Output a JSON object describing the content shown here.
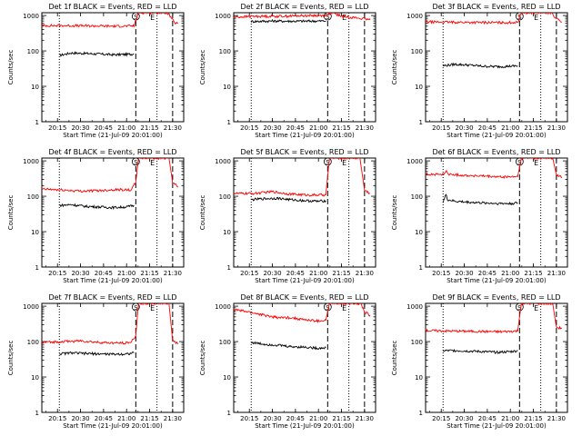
{
  "colors": {
    "events": "#000000",
    "lld": "#ff0000",
    "axes": "#000000"
  },
  "chart_data": [
    {
      "type": "line",
      "title": "Det 1f BLACK = Events, RED = LLD",
      "xlabel": "Start Time (21-Jul-09 20:01:00)",
      "ylabel": "Counts/sec",
      "yscale": "log",
      "ylim": [
        1,
        1200
      ],
      "xlim": [
        20.08,
        21.62
      ],
      "xticks": [
        20.25,
        20.5,
        20.75,
        21.0,
        21.25,
        21.5
      ],
      "xticklabels": [
        "20:15",
        "20:30",
        "20:45",
        "21:00",
        "21:15",
        "21:30"
      ],
      "yticks": [
        1,
        10,
        100,
        1000
      ],
      "yticklabels": [
        "1",
        "10",
        "100",
        "1000"
      ],
      "markers": [
        {
          "x": 20.27,
          "style": "dotted"
        },
        {
          "x": 21.1,
          "style": "dashed",
          "label": "S"
        },
        {
          "x": 21.33,
          "style": "dotted",
          "label": "E"
        },
        {
          "x": 21.5,
          "style": "dashed"
        }
      ],
      "series": [
        {
          "name": "Events",
          "color": "#000000",
          "x": [
            20.27,
            20.4,
            20.55,
            20.7,
            20.85,
            21.0,
            21.08
          ],
          "y": [
            75,
            88,
            85,
            82,
            78,
            80,
            82
          ]
        },
        {
          "name": "LLD",
          "color": "#ff0000",
          "x": [
            20.08,
            20.3,
            20.6,
            20.9,
            21.08,
            21.13,
            21.3,
            21.44,
            21.48,
            21.52,
            21.56
          ],
          "y": [
            520,
            520,
            510,
            500,
            510,
            1200,
            1200,
            1200,
            900,
            620,
            600
          ]
        }
      ]
    },
    {
      "type": "line",
      "title": "Det 2f BLACK = Events, RED = LLD",
      "xlabel": "Start Time (21-Jul-09 20:01:00)",
      "ylabel": "Counts/sec",
      "yscale": "log",
      "ylim": [
        1,
        1200
      ],
      "xlim": [
        20.08,
        21.62
      ],
      "xticks": [
        20.25,
        20.5,
        20.75,
        21.0,
        21.25,
        21.5
      ],
      "xticklabels": [
        "20:15",
        "20:30",
        "20:45",
        "21:00",
        "21:15",
        "21:30"
      ],
      "yticks": [
        1,
        10,
        100,
        1000
      ],
      "yticklabels": [
        "1",
        "10",
        "100",
        "1000"
      ],
      "markers": [
        {
          "x": 20.27,
          "style": "dotted"
        },
        {
          "x": 21.1,
          "style": "dashed",
          "label": "S"
        },
        {
          "x": 21.33,
          "style": "dotted",
          "label": "E"
        },
        {
          "x": 21.5,
          "style": "dashed"
        }
      ],
      "series": [
        {
          "name": "Events",
          "color": "#000000",
          "x": [
            20.27,
            20.5,
            20.75,
            21.0,
            21.08
          ],
          "y": [
            680,
            700,
            690,
            700,
            700
          ]
        },
        {
          "name": "LLD",
          "color": "#ff0000",
          "x": [
            20.08,
            20.3,
            20.6,
            20.9,
            21.08,
            21.12,
            21.17,
            21.25,
            21.35,
            21.5,
            21.56
          ],
          "y": [
            900,
            950,
            960,
            1000,
            1000,
            1150,
            1150,
            950,
            900,
            800,
            750
          ]
        }
      ]
    },
    {
      "type": "line",
      "title": "Det 3f BLACK = Events, RED = LLD",
      "xlabel": "Start Time (21-Jul-09 20:01:00)",
      "ylabel": "Counts/sec",
      "yscale": "log",
      "ylim": [
        1,
        1200
      ],
      "xlim": [
        20.08,
        21.62
      ],
      "xticks": [
        20.25,
        20.5,
        20.75,
        21.0,
        21.25,
        21.5
      ],
      "xticklabels": [
        "20:15",
        "20:30",
        "20:45",
        "21:00",
        "21:15",
        "21:30"
      ],
      "yticks": [
        1,
        10,
        100,
        1000
      ],
      "yticklabels": [
        "1",
        "10",
        "100",
        "1000"
      ],
      "markers": [
        {
          "x": 20.27,
          "style": "dotted"
        },
        {
          "x": 21.1,
          "style": "dashed",
          "label": "S"
        },
        {
          "x": 21.33,
          "style": "dotted",
          "label": "E"
        },
        {
          "x": 21.5,
          "style": "dashed"
        }
      ],
      "series": [
        {
          "name": "Events",
          "color": "#000000",
          "x": [
            20.27,
            20.4,
            20.55,
            20.7,
            20.85,
            21.0,
            21.08
          ],
          "y": [
            38,
            42,
            40,
            37,
            36,
            37,
            38
          ]
        },
        {
          "name": "LLD",
          "color": "#ff0000",
          "x": [
            20.08,
            20.3,
            20.6,
            20.9,
            21.08,
            21.12,
            21.3,
            21.45,
            21.5,
            21.56
          ],
          "y": [
            660,
            650,
            640,
            630,
            640,
            1200,
            1200,
            1200,
            800,
            650
          ]
        }
      ]
    },
    {
      "type": "line",
      "title": "Det 4f BLACK = Events, RED = LLD",
      "xlabel": "Start Time (21-Jul-09 20:01:00)",
      "ylabel": "Counts/sec",
      "yscale": "log",
      "ylim": [
        1,
        1200
      ],
      "xlim": [
        20.08,
        21.62
      ],
      "xticks": [
        20.25,
        20.5,
        20.75,
        21.0,
        21.25,
        21.5
      ],
      "xticklabels": [
        "20:15",
        "20:30",
        "20:45",
        "21:00",
        "21:15",
        "21:30"
      ],
      "yticks": [
        1,
        10,
        100,
        1000
      ],
      "yticklabels": [
        "1",
        "10",
        "100",
        "1000"
      ],
      "markers": [
        {
          "x": 20.27,
          "style": "dotted"
        },
        {
          "x": 21.1,
          "style": "dashed",
          "label": "S"
        },
        {
          "x": 21.33,
          "style": "dotted",
          "label": "E"
        },
        {
          "x": 21.5,
          "style": "dashed"
        }
      ],
      "series": [
        {
          "name": "Events",
          "color": "#000000",
          "x": [
            20.27,
            20.4,
            20.55,
            20.7,
            20.85,
            21.0,
            21.08
          ],
          "y": [
            55,
            58,
            52,
            50,
            48,
            50,
            55
          ]
        },
        {
          "name": "LLD",
          "color": "#ff0000",
          "x": [
            20.08,
            20.3,
            20.5,
            20.7,
            20.9,
            21.05,
            21.1,
            21.13,
            21.3,
            21.46,
            21.5,
            21.56
          ],
          "y": [
            160,
            150,
            140,
            145,
            155,
            150,
            250,
            1200,
            1200,
            1200,
            250,
            180
          ]
        }
      ]
    },
    {
      "type": "line",
      "title": "Det 5f BLACK = Events, RED = LLD",
      "xlabel": "Start Time (21-Jul-09 20:01:00)",
      "ylabel": "Counts/sec",
      "yscale": "log",
      "ylim": [
        1,
        1200
      ],
      "xlim": [
        20.08,
        21.62
      ],
      "xticks": [
        20.25,
        20.5,
        20.75,
        21.0,
        21.25,
        21.5
      ],
      "xticklabels": [
        "20:15",
        "20:30",
        "20:45",
        "21:00",
        "21:15",
        "21:30"
      ],
      "yticks": [
        1,
        10,
        100,
        1000
      ],
      "yticklabels": [
        "1",
        "10",
        "100",
        "1000"
      ],
      "markers": [
        {
          "x": 20.27,
          "style": "dotted"
        },
        {
          "x": 21.1,
          "style": "dashed",
          "label": "S"
        },
        {
          "x": 21.33,
          "style": "dotted",
          "label": "E"
        },
        {
          "x": 21.5,
          "style": "dashed"
        }
      ],
      "series": [
        {
          "name": "Events",
          "color": "#000000",
          "x": [
            20.27,
            20.4,
            20.55,
            20.7,
            20.85,
            21.0,
            21.08
          ],
          "y": [
            80,
            85,
            88,
            80,
            75,
            72,
            75
          ]
        },
        {
          "name": "LLD",
          "color": "#ff0000",
          "x": [
            20.08,
            20.3,
            20.5,
            20.7,
            20.9,
            21.08,
            21.12,
            21.3,
            21.45,
            21.5,
            21.56
          ],
          "y": [
            120,
            120,
            135,
            115,
            108,
            110,
            1200,
            1200,
            1200,
            150,
            120
          ]
        }
      ]
    },
    {
      "type": "line",
      "title": "Det 6f BLACK = Events, RED = LLD",
      "xlabel": "Start Time (21-Jul-09 20:01:00)",
      "ylabel": "Counts/sec",
      "yscale": "log",
      "ylim": [
        1,
        1200
      ],
      "xlim": [
        20.08,
        21.62
      ],
      "xticks": [
        20.25,
        20.5,
        20.75,
        21.0,
        21.25,
        21.5
      ],
      "xticklabels": [
        "20:15",
        "20:30",
        "20:45",
        "21:00",
        "21:15",
        "21:30"
      ],
      "yticks": [
        1,
        10,
        100,
        1000
      ],
      "yticklabels": [
        "1",
        "10",
        "100",
        "1000"
      ],
      "markers": [
        {
          "x": 20.27,
          "style": "dotted"
        },
        {
          "x": 21.1,
          "style": "dashed",
          "label": "S"
        },
        {
          "x": 21.33,
          "style": "dotted",
          "label": "E"
        },
        {
          "x": 21.5,
          "style": "dashed"
        }
      ],
      "series": [
        {
          "name": "Events",
          "color": "#000000",
          "x": [
            20.27,
            20.3,
            20.32,
            20.4,
            20.55,
            20.7,
            20.85,
            21.0,
            21.08
          ],
          "y": [
            70,
            110,
            80,
            72,
            68,
            65,
            63,
            62,
            65
          ]
        },
        {
          "name": "LLD",
          "color": "#ff0000",
          "x": [
            20.08,
            20.28,
            20.3,
            20.32,
            20.5,
            20.7,
            20.9,
            21.08,
            21.12,
            21.3,
            21.46,
            21.5,
            21.56
          ],
          "y": [
            420,
            410,
            550,
            420,
            390,
            370,
            350,
            360,
            1200,
            1200,
            1200,
            400,
            350
          ]
        }
      ]
    },
    {
      "type": "line",
      "title": "Det 7f BLACK = Events, RED = LLD",
      "xlabel": "Start Time (21-Jul-09 20:01:00)",
      "ylabel": "Counts/sec",
      "yscale": "log",
      "ylim": [
        1,
        1200
      ],
      "xlim": [
        20.08,
        21.62
      ],
      "xticks": [
        20.25,
        20.5,
        20.75,
        21.0,
        21.25,
        21.5
      ],
      "xticklabels": [
        "20:15",
        "20:30",
        "20:45",
        "21:00",
        "21:15",
        "21:30"
      ],
      "yticks": [
        1,
        10,
        100,
        1000
      ],
      "yticklabels": [
        "1",
        "10",
        "100",
        "1000"
      ],
      "markers": [
        {
          "x": 20.27,
          "style": "dotted"
        },
        {
          "x": 21.1,
          "style": "dashed",
          "label": "S"
        },
        {
          "x": 21.33,
          "style": "dotted",
          "label": "E"
        },
        {
          "x": 21.5,
          "style": "dashed"
        }
      ],
      "series": [
        {
          "name": "Events",
          "color": "#000000",
          "x": [
            20.27,
            20.4,
            20.55,
            20.7,
            20.85,
            21.0,
            21.08
          ],
          "y": [
            45,
            48,
            46,
            45,
            44,
            45,
            48
          ]
        },
        {
          "name": "LLD",
          "color": "#ff0000",
          "x": [
            20.08,
            20.3,
            20.5,
            20.7,
            20.9,
            21.05,
            21.1,
            21.13,
            21.3,
            21.46,
            21.5,
            21.56
          ],
          "y": [
            95,
            100,
            105,
            95,
            90,
            95,
            150,
            1200,
            1200,
            1200,
            110,
            85
          ]
        }
      ]
    },
    {
      "type": "line",
      "title": "Det 8f BLACK = Events, RED = LLD",
      "xlabel": "Start Time (21-Jul-09 20:01:00)",
      "ylabel": "Counts/sec",
      "yscale": "log",
      "ylim": [
        1,
        1200
      ],
      "xlim": [
        20.08,
        21.62
      ],
      "xticks": [
        20.25,
        20.5,
        20.75,
        21.0,
        21.25,
        21.5
      ],
      "xticklabels": [
        "20:15",
        "20:30",
        "20:45",
        "21:00",
        "21:15",
        "21:30"
      ],
      "yticks": [
        1,
        10,
        100,
        1000
      ],
      "yticklabels": [
        "1",
        "10",
        "100",
        "1000"
      ],
      "markers": [
        {
          "x": 20.27,
          "style": "dotted"
        },
        {
          "x": 21.1,
          "style": "dashed",
          "label": "S"
        },
        {
          "x": 21.33,
          "style": "dotted",
          "label": "E"
        },
        {
          "x": 21.5,
          "style": "dashed"
        }
      ],
      "series": [
        {
          "name": "Events",
          "color": "#000000",
          "x": [
            20.27,
            20.4,
            20.55,
            20.7,
            20.85,
            21.0,
            21.08
          ],
          "y": [
            95,
            85,
            80,
            72,
            70,
            65,
            68
          ]
        },
        {
          "name": "LLD",
          "color": "#ff0000",
          "x": [
            20.08,
            20.2,
            20.35,
            20.5,
            20.6,
            20.7,
            20.8,
            20.9,
            21.0,
            21.08,
            21.12,
            21.3,
            21.46,
            21.5,
            21.56
          ],
          "y": [
            800,
            720,
            600,
            500,
            470,
            480,
            430,
            400,
            380,
            400,
            1200,
            1200,
            1200,
            700,
            550
          ]
        }
      ]
    },
    {
      "type": "line",
      "title": "Det 9f BLACK = Events, RED = LLD",
      "xlabel": "Start Time (21-Jul-09 20:01:00)",
      "ylabel": "Counts/sec",
      "yscale": "log",
      "ylim": [
        1,
        1200
      ],
      "xlim": [
        20.08,
        21.62
      ],
      "xticks": [
        20.25,
        20.5,
        20.75,
        21.0,
        21.25,
        21.5
      ],
      "xticklabels": [
        "20:15",
        "20:30",
        "20:45",
        "21:00",
        "21:15",
        "21:30"
      ],
      "yticks": [
        1,
        10,
        100,
        1000
      ],
      "yticklabels": [
        "1",
        "10",
        "100",
        "1000"
      ],
      "markers": [
        {
          "x": 20.27,
          "style": "dotted"
        },
        {
          "x": 21.1,
          "style": "dashed",
          "label": "S"
        },
        {
          "x": 21.33,
          "style": "dotted",
          "label": "E"
        },
        {
          "x": 21.5,
          "style": "dashed"
        }
      ],
      "series": [
        {
          "name": "Events",
          "color": "#000000",
          "x": [
            20.27,
            20.4,
            20.55,
            20.7,
            20.85,
            21.0,
            21.08
          ],
          "y": [
            55,
            56,
            54,
            52,
            50,
            52,
            55
          ]
        },
        {
          "name": "LLD",
          "color": "#ff0000",
          "x": [
            20.08,
            20.3,
            20.6,
            20.9,
            21.08,
            21.12,
            21.3,
            21.46,
            21.5,
            21.56
          ],
          "y": [
            205,
            200,
            195,
            190,
            200,
            1200,
            1200,
            1200,
            250,
            240
          ]
        }
      ]
    }
  ]
}
